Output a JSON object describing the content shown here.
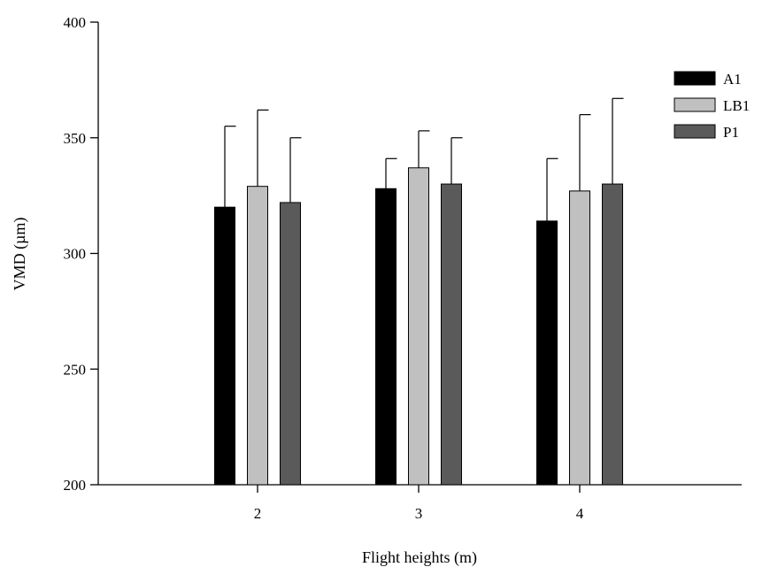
{
  "chart_data": {
    "type": "bar",
    "xlabel": "Flight heights (m)",
    "ylabel": "VMD (µm)",
    "ylim": [
      200,
      400
    ],
    "yticks": [
      200,
      250,
      300,
      350,
      400
    ],
    "categories": [
      "2",
      "3",
      "4"
    ],
    "grid": false,
    "legend_position": "top-right",
    "series": [
      {
        "name": "A1",
        "color": "#000000",
        "values": [
          320,
          328,
          314
        ],
        "errors": [
          35,
          13,
          27
        ]
      },
      {
        "name": "LB1",
        "color": "#c0c0c0",
        "values": [
          329,
          337,
          327
        ],
        "errors": [
          33,
          16,
          33
        ]
      },
      {
        "name": "P1",
        "color": "#5a5a5a",
        "values": [
          322,
          330,
          330
        ],
        "errors": [
          28,
          20,
          37
        ]
      }
    ]
  }
}
